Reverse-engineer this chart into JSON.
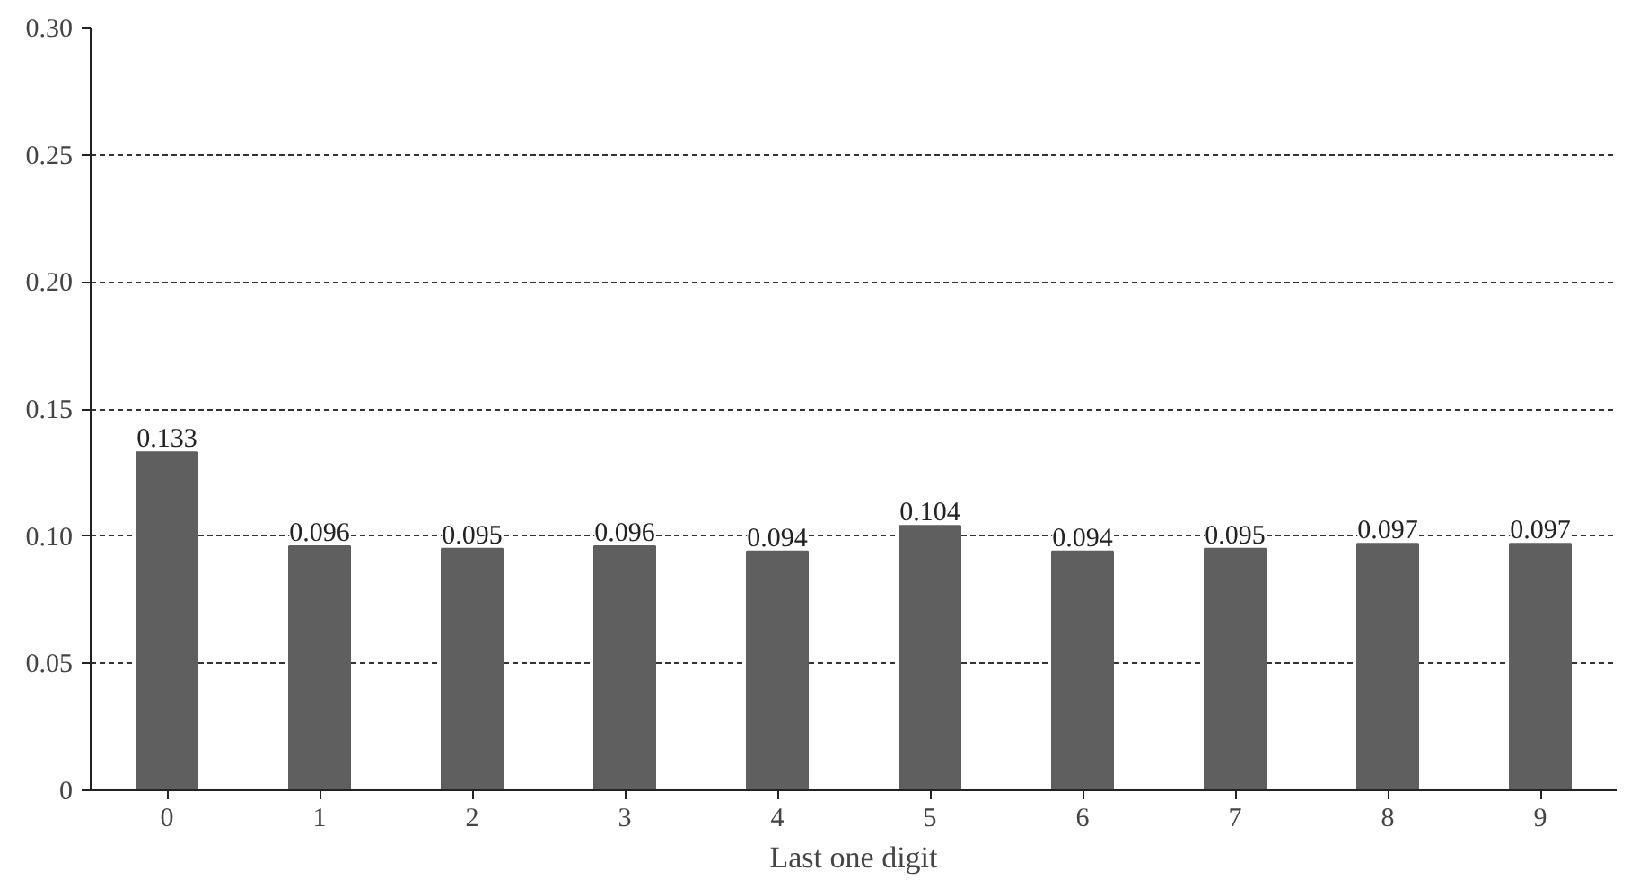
{
  "chart_data": {
    "type": "bar",
    "xlabel": "Last one digit",
    "categories": [
      "0",
      "1",
      "2",
      "3",
      "4",
      "5",
      "6",
      "7",
      "8",
      "9"
    ],
    "values": [
      0.133,
      0.096,
      0.095,
      0.096,
      0.094,
      0.104,
      0.094,
      0.095,
      0.097,
      0.097
    ],
    "color": "#5f5f5f",
    "ylim": [
      0,
      0.3
    ],
    "yticks": [
      0,
      0.05,
      {
        "value": 0.1,
        "label": "0.10"
      },
      0.15,
      {
        "value": 0.2,
        "label": "0.20"
      },
      0.25,
      {
        "value": 0.3,
        "label": "0.30"
      }
    ],
    "grid": "y",
    "line_style": "dashed",
    "data_labels": true
  }
}
